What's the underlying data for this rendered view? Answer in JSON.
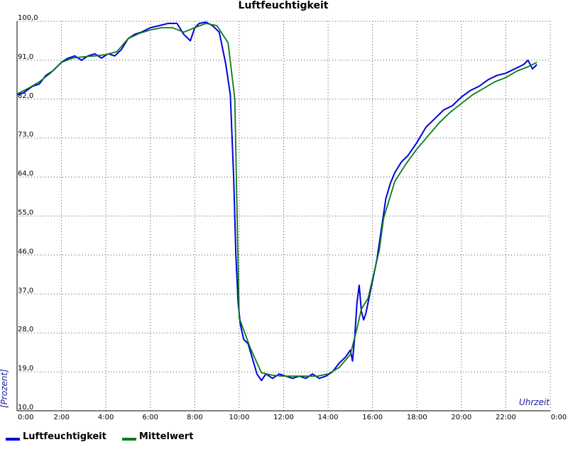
{
  "chart_data": {
    "type": "line",
    "title": "Luftfeuchtigkeit",
    "ylabel": "[Prozent]",
    "xlabel": "Uhrzeit",
    "ylim": [
      10,
      100
    ],
    "xlim": [
      0,
      24
    ],
    "y_ticks": [
      10,
      19,
      28,
      37,
      46,
      55,
      64,
      73,
      82,
      91,
      100
    ],
    "y_tick_labels": [
      "10,0",
      "19,0",
      "28,0",
      "37,0",
      "46,0",
      "55,0",
      "64,0",
      "73,0",
      "82,0",
      "91,0",
      "100,0"
    ],
    "x_ticks": [
      0,
      2,
      4,
      6,
      8,
      10,
      12,
      14,
      16,
      18,
      20,
      22,
      24
    ],
    "x_tick_labels": [
      "0:00",
      "2:00",
      "4:00",
      "6:00",
      "8:00",
      "10:00",
      "12:00",
      "14:00",
      "16:00",
      "18:00",
      "20:00",
      "22:00",
      "0:00"
    ],
    "grid": true,
    "legend_position": "bottom-left",
    "series": [
      {
        "name": "Luftfeuchtigkeit",
        "color": "#0000dd",
        "x": [
          0,
          0.3,
          0.7,
          1.0,
          1.3,
          1.6,
          2.0,
          2.3,
          2.6,
          2.9,
          3.2,
          3.5,
          3.8,
          4.1,
          4.4,
          4.7,
          5.0,
          5.3,
          5.6,
          6.0,
          6.4,
          6.8,
          7.2,
          7.5,
          7.8,
          8.0,
          8.2,
          8.5,
          8.8,
          9.1,
          9.4,
          9.6,
          9.75,
          9.85,
          9.95,
          10.05,
          10.2,
          10.4,
          10.6,
          10.8,
          11.0,
          11.2,
          11.5,
          11.8,
          12.1,
          12.4,
          12.7,
          13.0,
          13.3,
          13.6,
          13.9,
          14.2,
          14.5,
          14.8,
          15.0,
          15.1,
          15.2,
          15.3,
          15.4,
          15.5,
          15.6,
          15.7,
          15.8,
          16.0,
          16.2,
          16.4,
          16.6,
          16.8,
          17.0,
          17.3,
          17.6,
          18.0,
          18.4,
          18.8,
          19.2,
          19.6,
          20.0,
          20.4,
          20.8,
          21.2,
          21.6,
          22.0,
          22.4,
          22.8,
          23.0,
          23.2,
          23.4
        ],
        "values": [
          83.0,
          83.5,
          85.0,
          85.5,
          87.5,
          88.5,
          90.5,
          91.5,
          92.0,
          91.0,
          92.0,
          92.5,
          91.5,
          92.5,
          92.0,
          93.5,
          96.0,
          97.0,
          97.5,
          98.5,
          99.0,
          99.5,
          99.5,
          97.0,
          95.5,
          98.5,
          99.5,
          99.8,
          99.0,
          97.5,
          90.0,
          83.0,
          64.0,
          46.0,
          35.0,
          30.0,
          26.5,
          25.5,
          22.0,
          18.5,
          17.0,
          18.5,
          17.5,
          18.5,
          18.0,
          17.5,
          18.0,
          17.5,
          18.5,
          17.5,
          18.0,
          19.0,
          21.0,
          22.5,
          24.0,
          21.5,
          27.0,
          35.0,
          39.0,
          33.0,
          31.0,
          32.5,
          35.0,
          40.0,
          45.0,
          52.0,
          59.0,
          62.5,
          65.0,
          67.5,
          69.0,
          72.0,
          75.5,
          77.5,
          79.5,
          80.5,
          82.5,
          84.0,
          85.0,
          86.5,
          87.5,
          88.0,
          89.0,
          90.0,
          91.0,
          89.0,
          90.0
        ]
      },
      {
        "name": "Mittelwert",
        "color": "#0a7a1a",
        "x": [
          0,
          0.5,
          1.0,
          1.5,
          2.0,
          2.5,
          3.0,
          3.5,
          4.0,
          4.5,
          5.0,
          5.5,
          6.0,
          6.5,
          7.0,
          7.5,
          8.0,
          8.5,
          9.0,
          9.5,
          9.8,
          10.0,
          10.5,
          11.0,
          11.5,
          12.0,
          12.5,
          13.0,
          13.5,
          14.0,
          14.5,
          15.0,
          15.3,
          15.5,
          15.8,
          16.0,
          16.3,
          16.5,
          17.0,
          17.5,
          18.0,
          18.5,
          19.0,
          19.5,
          20.0,
          20.5,
          21.0,
          21.5,
          22.0,
          22.5,
          23.0,
          23.4
        ],
        "values": [
          83.2,
          84.5,
          86.0,
          88.0,
          90.5,
          91.5,
          91.8,
          92.0,
          92.3,
          93.0,
          96.0,
          97.2,
          98.0,
          98.5,
          98.5,
          97.5,
          98.5,
          99.5,
          99.0,
          95.0,
          82.0,
          31.5,
          24.5,
          18.8,
          18.2,
          18.0,
          18.0,
          18.0,
          18.0,
          18.5,
          20.0,
          23.0,
          29.0,
          33.5,
          36.0,
          40.5,
          47.0,
          54.5,
          63.0,
          67.0,
          70.5,
          73.5,
          76.5,
          79.0,
          81.0,
          83.0,
          84.5,
          86.0,
          87.0,
          88.5,
          89.5,
          90.5
        ]
      }
    ]
  }
}
